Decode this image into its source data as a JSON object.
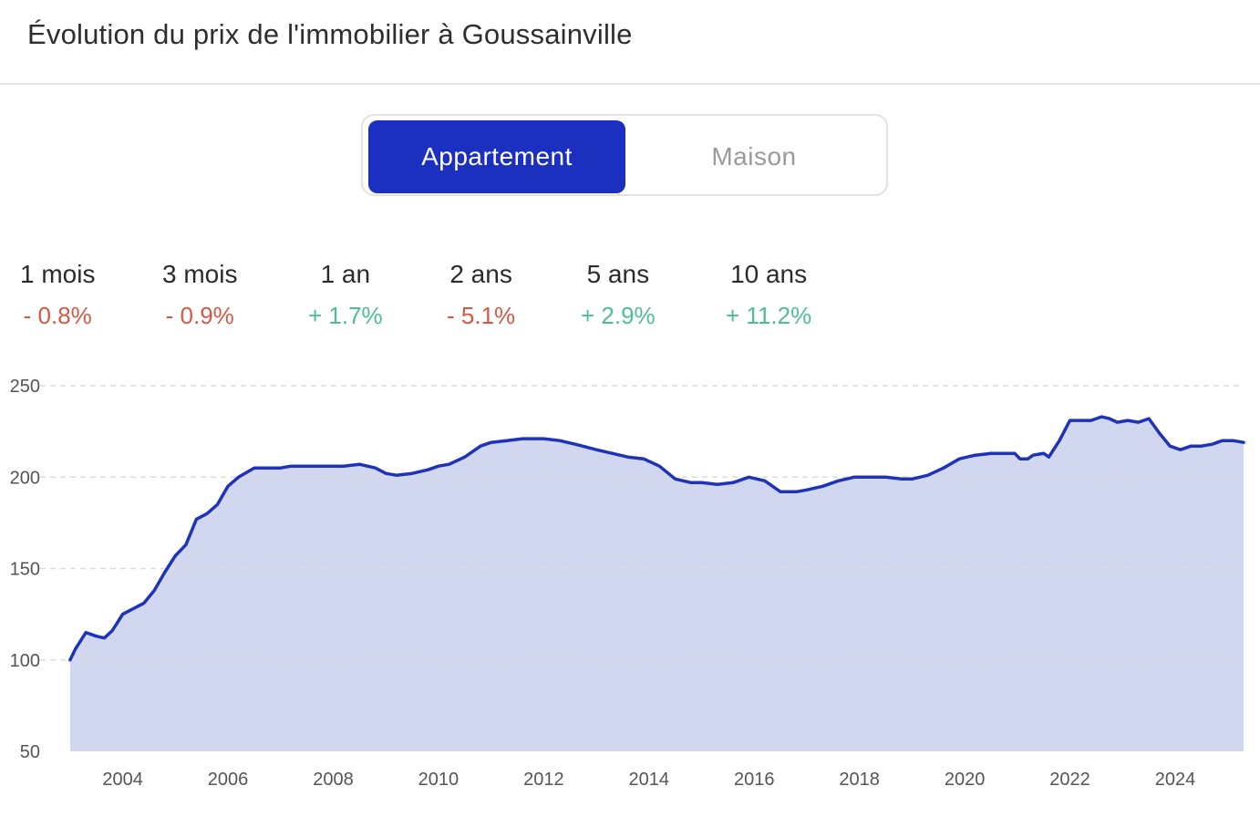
{
  "title": "Évolution du prix de l'immobilier à Goussainville",
  "toggle": {
    "options": [
      "Appartement",
      "Maison"
    ],
    "selected": "Appartement"
  },
  "stats": [
    {
      "label": "1 mois",
      "value": "- 0.8%",
      "trend": "negative"
    },
    {
      "label": "3 mois",
      "value": "- 0.9%",
      "trend": "negative"
    },
    {
      "label": "1 an",
      "value": "+ 1.7%",
      "trend": "positive"
    },
    {
      "label": "2 ans",
      "value": "- 5.1%",
      "trend": "negative"
    },
    {
      "label": "5 ans",
      "value": "+ 2.9%",
      "trend": "positive"
    },
    {
      "label": "10 ans",
      "value": "+ 11.2%",
      "trend": "positive"
    }
  ],
  "colors": {
    "accent": "#1c30c0",
    "line": "#1f33b8",
    "area": "#d2d7f0",
    "negative": "#d55846",
    "positive": "#4fbe8e"
  },
  "chart_data": {
    "type": "area",
    "title": "",
    "xlabel": "",
    "ylabel": "",
    "ylim": [
      50,
      250
    ],
    "xlim": [
      2002.95,
      2025.3
    ],
    "y_ticks": [
      "250",
      "200",
      "150",
      "100",
      "50"
    ],
    "x_ticks": [
      "2004",
      "2006",
      "2008",
      "2010",
      "2012",
      "2014",
      "2016",
      "2018",
      "2020",
      "2022",
      "2024"
    ],
    "grid": "horizontal dashed",
    "series": [
      {
        "name": "",
        "x": [
          2003.0,
          2003.1,
          2003.3,
          2003.5,
          2003.65,
          2003.8,
          2004.0,
          2004.2,
          2004.4,
          2004.6,
          2004.8,
          2005.0,
          2005.2,
          2005.4,
          2005.6,
          2005.8,
          2006.0,
          2006.2,
          2006.5,
          2006.8,
          2007.0,
          2007.2,
          2007.5,
          2007.8,
          2008.0,
          2008.2,
          2008.5,
          2008.8,
          2009.0,
          2009.2,
          2009.5,
          2009.8,
          2010.0,
          2010.2,
          2010.5,
          2010.8,
          2011.0,
          2011.3,
          2011.6,
          2012.0,
          2012.3,
          2012.6,
          2013.0,
          2013.3,
          2013.6,
          2013.9,
          2014.2,
          2014.5,
          2014.8,
          2015.0,
          2015.3,
          2015.6,
          2015.9,
          2016.2,
          2016.5,
          2016.8,
          2017.0,
          2017.3,
          2017.6,
          2017.9,
          2018.2,
          2018.5,
          2018.8,
          2019.0,
          2019.3,
          2019.6,
          2019.9,
          2020.2,
          2020.5,
          2020.8,
          2020.95,
          2021.05,
          2021.2,
          2021.3,
          2021.5,
          2021.6,
          2021.8,
          2022.0,
          2022.2,
          2022.4,
          2022.6,
          2022.75,
          2022.9,
          2023.1,
          2023.3,
          2023.5,
          2023.7,
          2023.9,
          2024.1,
          2024.3,
          2024.5,
          2024.7,
          2024.9,
          2025.1,
          2025.3
        ],
        "y": [
          100,
          106,
          115,
          113,
          112,
          116,
          125,
          128,
          131,
          138,
          148,
          157,
          163,
          177,
          180,
          185,
          195,
          200,
          205,
          205,
          205,
          206,
          206,
          206,
          206,
          206,
          207,
          205,
          202,
          201,
          202,
          204,
          206,
          207,
          211,
          217,
          219,
          220,
          221,
          221,
          220,
          218,
          215,
          213,
          211,
          210,
          206,
          199,
          197,
          197,
          196,
          197,
          200,
          198,
          192,
          192,
          193,
          195,
          198,
          200,
          200,
          200,
          199,
          199,
          201,
          205,
          210,
          212,
          213,
          213,
          213,
          210,
          210,
          212,
          213,
          211,
          220,
          231,
          231,
          231,
          233,
          232,
          230,
          231,
          230,
          232,
          224,
          217,
          215,
          217,
          217,
          218,
          220,
          220,
          219
        ]
      }
    ]
  }
}
